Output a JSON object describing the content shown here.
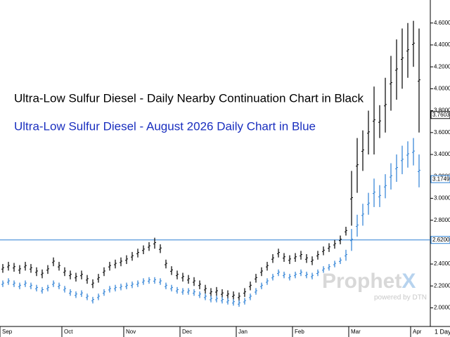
{
  "chart_data": {
    "type": "hilo",
    "categories": [
      "Sep",
      null,
      null,
      null,
      null,
      null,
      null,
      null,
      null,
      null,
      null,
      "Oct",
      null,
      null,
      null,
      null,
      null,
      null,
      null,
      null,
      null,
      null,
      "Nov",
      null,
      null,
      null,
      null,
      null,
      null,
      null,
      null,
      null,
      "Dec",
      null,
      null,
      null,
      null,
      null,
      null,
      null,
      null,
      null,
      "Jan",
      null,
      null,
      null,
      null,
      null,
      null,
      null,
      null,
      null,
      "Feb",
      null,
      null,
      null,
      null,
      null,
      null,
      null,
      null,
      null,
      "Mar",
      null,
      null,
      null,
      null,
      null,
      null,
      null,
      null,
      null,
      null,
      "Apr",
      null
    ],
    "series": [
      {
        "name": "Ultra-Low Sulfur Diesel - Daily Nearby Continuation Chart in Black",
        "color": "#000000",
        "high": [
          2.4,
          2.42,
          2.41,
          2.39,
          2.42,
          2.4,
          2.37,
          2.35,
          2.39,
          2.46,
          2.42,
          2.37,
          2.34,
          2.32,
          2.34,
          2.3,
          2.26,
          2.31,
          2.37,
          2.42,
          2.44,
          2.46,
          2.48,
          2.51,
          2.54,
          2.57,
          2.6,
          2.64,
          2.58,
          2.44,
          2.38,
          2.34,
          2.32,
          2.3,
          2.28,
          2.25,
          2.21,
          2.18,
          2.19,
          2.17,
          2.16,
          2.15,
          2.14,
          2.18,
          2.24,
          2.31,
          2.37,
          2.42,
          2.49,
          2.54,
          2.5,
          2.48,
          2.5,
          2.52,
          2.49,
          2.47,
          2.52,
          2.56,
          2.59,
          2.62,
          2.66,
          2.74,
          3.25,
          3.55,
          3.62,
          3.8,
          4.02,
          3.85,
          4.1,
          4.3,
          4.45,
          4.55,
          4.6,
          4.62,
          4.55
        ],
        "low": [
          2.32,
          2.34,
          2.33,
          2.31,
          2.34,
          2.32,
          2.29,
          2.27,
          2.31,
          2.38,
          2.34,
          2.29,
          2.26,
          2.24,
          2.26,
          2.22,
          2.18,
          2.23,
          2.29,
          2.34,
          2.36,
          2.38,
          2.4,
          2.43,
          2.46,
          2.49,
          2.52,
          2.54,
          2.5,
          2.36,
          2.3,
          2.26,
          2.24,
          2.22,
          2.2,
          2.17,
          2.13,
          2.1,
          2.11,
          2.09,
          2.08,
          2.07,
          2.06,
          2.1,
          2.16,
          2.23,
          2.29,
          2.34,
          2.41,
          2.46,
          2.42,
          2.4,
          2.42,
          2.44,
          2.41,
          2.39,
          2.44,
          2.48,
          2.51,
          2.54,
          2.58,
          2.66,
          2.75,
          3.05,
          3.25,
          3.4,
          3.4,
          3.55,
          3.6,
          3.8,
          3.9,
          4.0,
          4.1,
          4.2,
          3.6
        ],
        "last": {
          "value": 3.7603,
          "label": "3.7603"
        }
      },
      {
        "name": "Ultra-Low Sulfur Diesel - August 2026 Daily Chart in Blue",
        "color": "#2a7fd4",
        "high": [
          2.25,
          2.27,
          2.25,
          2.23,
          2.25,
          2.23,
          2.21,
          2.19,
          2.21,
          2.25,
          2.23,
          2.2,
          2.17,
          2.15,
          2.16,
          2.13,
          2.1,
          2.13,
          2.17,
          2.2,
          2.21,
          2.22,
          2.23,
          2.24,
          2.25,
          2.27,
          2.28,
          2.28,
          2.27,
          2.23,
          2.21,
          2.19,
          2.18,
          2.18,
          2.17,
          2.15,
          2.13,
          2.11,
          2.11,
          2.1,
          2.09,
          2.08,
          2.07,
          2.09,
          2.13,
          2.18,
          2.23,
          2.27,
          2.31,
          2.35,
          2.33,
          2.31,
          2.33,
          2.35,
          2.33,
          2.32,
          2.35,
          2.38,
          2.4,
          2.43,
          2.46,
          2.53,
          2.72,
          2.85,
          2.95,
          3.05,
          3.18,
          3.12,
          3.22,
          3.32,
          3.4,
          3.48,
          3.52,
          3.55,
          3.4
        ],
        "low": [
          2.19,
          2.21,
          2.19,
          2.17,
          2.19,
          2.17,
          2.15,
          2.13,
          2.15,
          2.19,
          2.17,
          2.14,
          2.11,
          2.09,
          2.1,
          2.07,
          2.04,
          2.07,
          2.11,
          2.14,
          2.15,
          2.16,
          2.17,
          2.18,
          2.19,
          2.21,
          2.22,
          2.22,
          2.21,
          2.17,
          2.15,
          2.13,
          2.12,
          2.12,
          2.11,
          2.09,
          2.07,
          2.05,
          2.05,
          2.04,
          2.03,
          2.02,
          2.01,
          2.03,
          2.07,
          2.12,
          2.17,
          2.21,
          2.25,
          2.29,
          2.27,
          2.25,
          2.27,
          2.29,
          2.27,
          2.26,
          2.29,
          2.32,
          2.34,
          2.37,
          2.4,
          2.43,
          2.52,
          2.65,
          2.75,
          2.85,
          2.92,
          2.92,
          3.0,
          3.08,
          3.15,
          3.22,
          3.28,
          3.3,
          3.1
        ],
        "last": {
          "value": 3.1749,
          "label": "3.1749"
        }
      }
    ],
    "hline": {
      "value": 2.62,
      "label": "2.6200",
      "color": "#2a7fd4"
    },
    "ylim": [
      1.83,
      4.81
    ],
    "yticks": [
      {
        "value": 2.0,
        "label": "2.0000"
      },
      {
        "value": 2.2,
        "label": "2.2000"
      },
      {
        "value": 2.4,
        "label": "2.4000"
      },
      {
        "value": 2.6,
        "label": "2.6000"
      },
      {
        "value": 2.8,
        "label": "2.8000"
      },
      {
        "value": 3.0,
        "label": "3.0000"
      },
      {
        "value": 3.2,
        "label": "3.2000"
      },
      {
        "value": 3.4,
        "label": "3.4000"
      },
      {
        "value": 3.6,
        "label": "3.6000"
      },
      {
        "value": 3.8,
        "label": "3.8000"
      },
      {
        "value": 4.0,
        "label": "4.0000"
      },
      {
        "value": 4.2,
        "label": "4.2000"
      },
      {
        "value": 4.4,
        "label": "4.4000"
      },
      {
        "value": 4.6,
        "label": "4.6000"
      }
    ],
    "interval_label": "1 Day",
    "watermark": [
      "Prophet",
      "X"
    ],
    "watermark_sub": "powered by DTN"
  }
}
